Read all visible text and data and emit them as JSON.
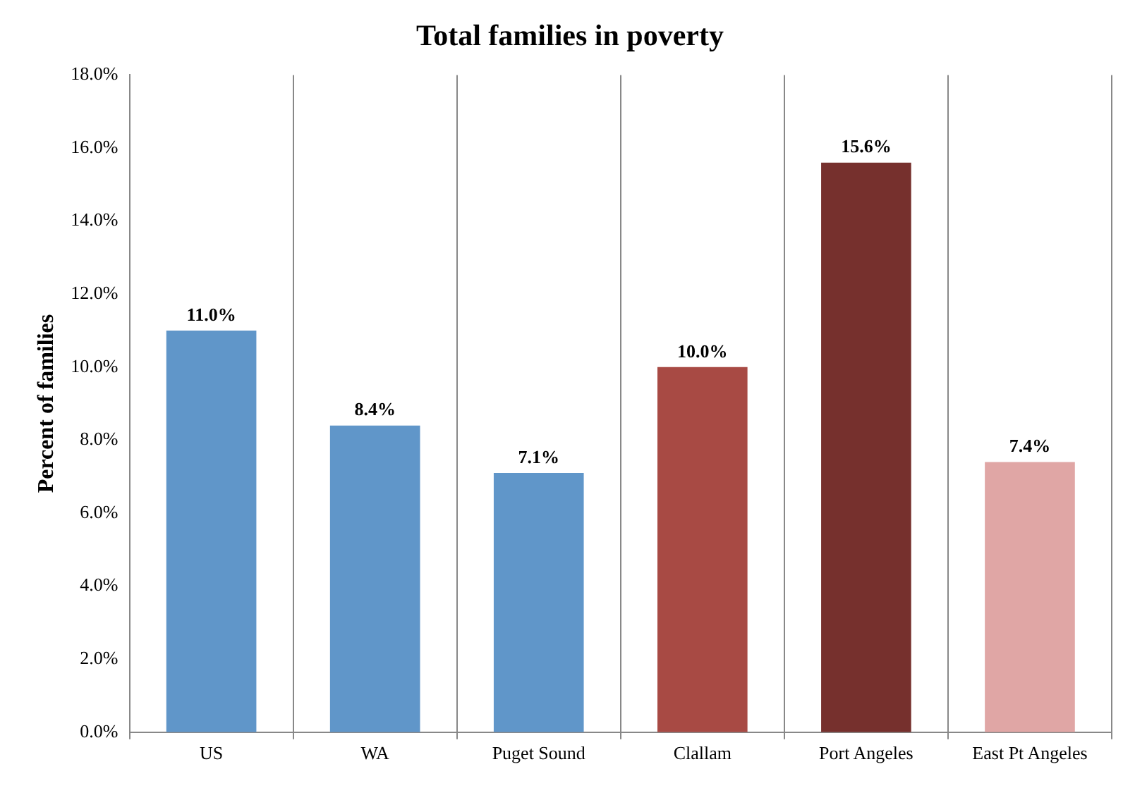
{
  "chart_data": {
    "type": "bar",
    "title": "Total families in poverty",
    "ylabel": "Percent of families",
    "categories": [
      "US",
      "WA",
      "Puget Sound",
      "Clallam",
      "Port Angeles",
      "East Pt Angeles"
    ],
    "values": [
      11.0,
      8.4,
      7.1,
      10.0,
      15.6,
      7.4
    ],
    "colors": [
      "#6096c9",
      "#6096c9",
      "#6096c9",
      "#a84a44",
      "#76302d",
      "#e0a6a5"
    ],
    "value_labels": [
      "11.0%",
      "8.4%",
      "7.1%",
      "10.0%",
      "15.6%",
      "7.4%"
    ],
    "ylim": [
      0,
      18
    ],
    "yticks": [
      {
        "value": 0,
        "label": "0.0%"
      },
      {
        "value": 2,
        "label": "2.0%"
      },
      {
        "value": 4,
        "label": "4.0%"
      },
      {
        "value": 6,
        "label": "6.0%"
      },
      {
        "value": 8,
        "label": "8.0%"
      },
      {
        "value": 10,
        "label": "10.0%"
      },
      {
        "value": 12,
        "label": "12.0%"
      },
      {
        "value": 14,
        "label": "14.0%"
      },
      {
        "value": 16,
        "label": "16.0%"
      },
      {
        "value": 18,
        "label": "18.0%"
      }
    ],
    "grid": "x",
    "legend": false
  }
}
